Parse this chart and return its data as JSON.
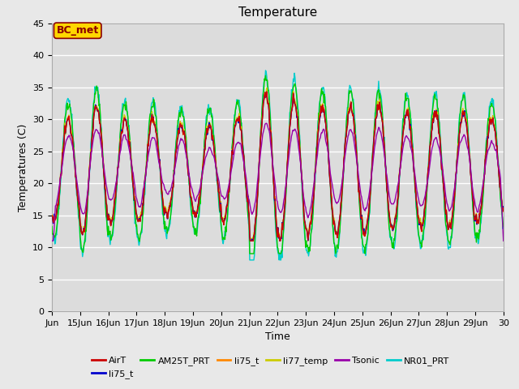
{
  "title": "Temperature",
  "xlabel": "Time",
  "ylabel": "Temperatures (C)",
  "ylim": [
    0,
    45
  ],
  "yticks": [
    0,
    5,
    10,
    15,
    20,
    25,
    30,
    35,
    40,
    45
  ],
  "annotation_text": "BC_met",
  "annotation_color": "#8B0000",
  "annotation_bg": "#FFD700",
  "series_colors": {
    "AirT": "#CC0000",
    "li75_t_blue": "#0000CC",
    "AM25T_PRT": "#00CC00",
    "li75_t_orange": "#FF8800",
    "li77_temp": "#CCCC00",
    "Tsonic": "#9900AA",
    "NR01_PRT": "#00CCCC"
  },
  "legend_entries": [
    {
      "label": "AirT",
      "color": "#CC0000"
    },
    {
      "label": "li75_t",
      "color": "#0000CC"
    },
    {
      "label": "AM25T_PRT",
      "color": "#00CC00"
    },
    {
      "label": "li75_t",
      "color": "#FF8800"
    },
    {
      "label": "li77_temp",
      "color": "#CCCC00"
    },
    {
      "label": "Tsonic",
      "color": "#9900AA"
    },
    {
      "label": "NR01_PRT",
      "color": "#00CCCC"
    }
  ],
  "plot_bg_color": "#DCDCDC",
  "grid_color": "#FFFFFF",
  "fig_bg_color": "#E8E8E8",
  "title_fontsize": 11,
  "axis_fontsize": 9,
  "tick_fontsize": 8
}
